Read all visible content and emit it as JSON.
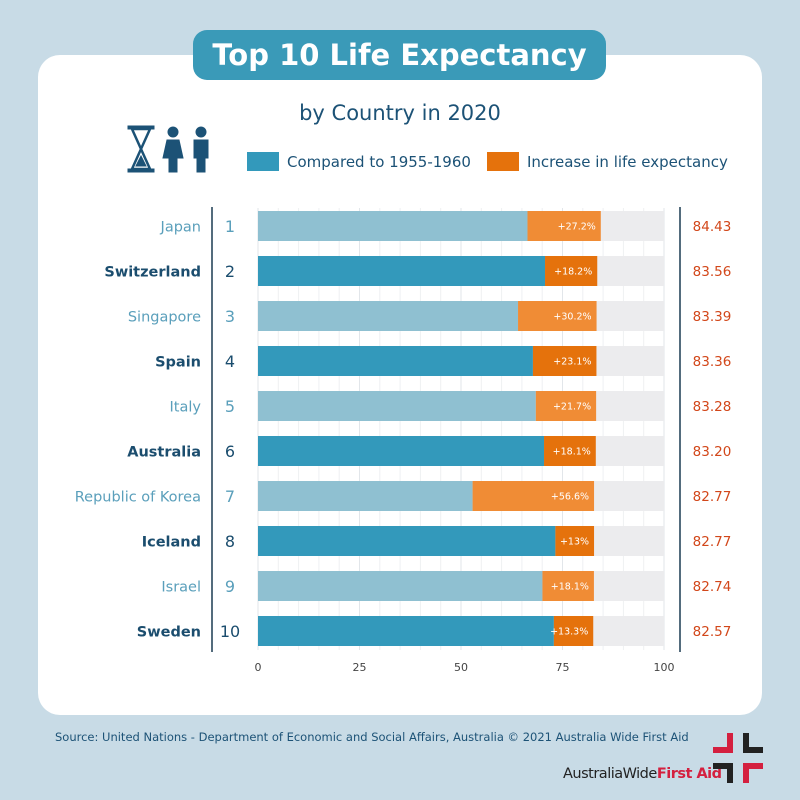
{
  "title": "Top 10 Life Expectancy",
  "subtitle": "by Country in 2020",
  "legend": {
    "base": "Compared to 1955-1960",
    "increase": "Increase in life expectancy"
  },
  "colors": {
    "base_dark": "#3399bb",
    "base_light": "#8fc0d1",
    "inc_dark": "#e5720c",
    "inc_light": "#f08c35",
    "value": "#d2471a",
    "accent": "#3a9ab8"
  },
  "source": "Source: United Nations - Department of Economic and Social Affairs, Australia © 2021 Australia Wide First Aid",
  "logo": {
    "part1": "AustraliaWide",
    "part2": "First Aid"
  },
  "chart_data": {
    "type": "bar",
    "orientation": "horizontal",
    "stacked": true,
    "xlim": [
      0,
      100
    ],
    "xticks": [
      "0",
      "25",
      "50",
      "75",
      "100"
    ],
    "grid": true,
    "legend_position": "top",
    "series": [
      {
        "name": "Compared to 1955-1960"
      },
      {
        "name": "Increase in life expectancy"
      }
    ],
    "rows": [
      {
        "rank": "1",
        "country": "Japan",
        "value": 84.43,
        "value_label": "84.43",
        "increase": "+27.2%",
        "pct": 27.2
      },
      {
        "rank": "2",
        "country": "Switzerland",
        "value": 83.56,
        "value_label": "83.56",
        "increase": "+18.2%",
        "pct": 18.2
      },
      {
        "rank": "3",
        "country": "Singapore",
        "value": 83.39,
        "value_label": "83.39",
        "increase": "+30.2%",
        "pct": 30.2
      },
      {
        "rank": "4",
        "country": "Spain",
        "value": 83.36,
        "value_label": "83.36",
        "increase": "+23.1%",
        "pct": 23.1
      },
      {
        "rank": "5",
        "country": "Italy",
        "value": 83.28,
        "value_label": "83.28",
        "increase": "+21.7%",
        "pct": 21.7
      },
      {
        "rank": "6",
        "country": "Australia",
        "value": 83.2,
        "value_label": "83.20",
        "increase": "+18.1%",
        "pct": 18.1
      },
      {
        "rank": "7",
        "country": "Republic of Korea",
        "value": 82.77,
        "value_label": "82.77",
        "increase": "+56.6%",
        "pct": 56.6
      },
      {
        "rank": "8",
        "country": "Iceland",
        "value": 82.77,
        "value_label": "82.77",
        "increase": "+13%",
        "pct": 13
      },
      {
        "rank": "9",
        "country": "Israel",
        "value": 82.74,
        "value_label": "82.74",
        "increase": "+18.1%",
        "pct": 18.1
      },
      {
        "rank": "10",
        "country": "Sweden",
        "value": 82.57,
        "value_label": "82.57",
        "increase": "+13.3%",
        "pct": 13.3
      }
    ]
  }
}
